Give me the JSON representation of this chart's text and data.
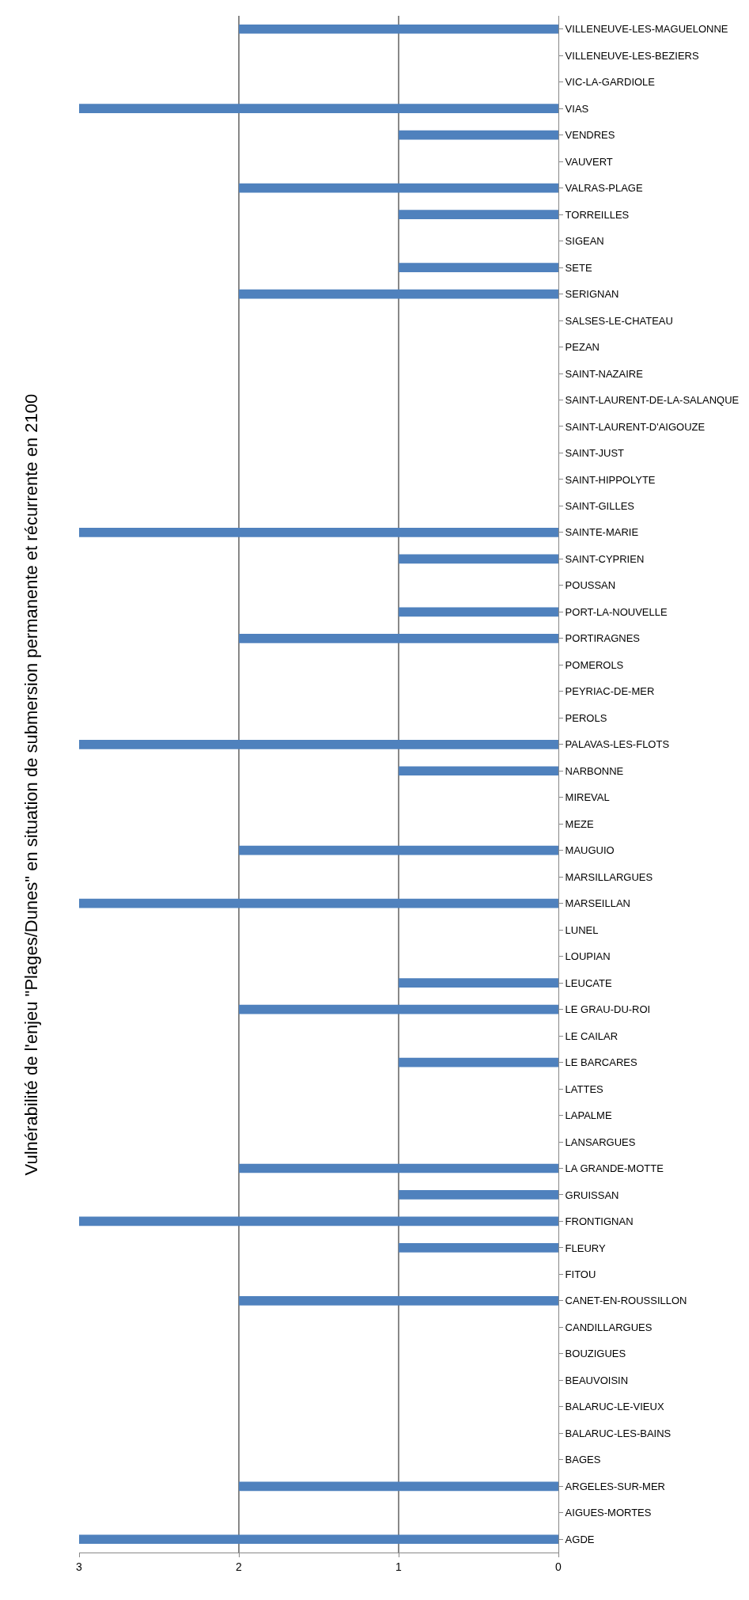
{
  "chart_data": {
    "type": "bar",
    "orientation": "horizontal",
    "title": "Vulnérabilité de l'enjeu \"Plages/Dunes\" en situation de submersion permanente et récurrente en 2100",
    "categories": [
      "VILLENEUVE-LES-MAGUELONNE",
      "VILLENEUVE-LES-BEZIERS",
      "VIC-LA-GARDIOLE",
      "VIAS",
      "VENDRES",
      "VAUVERT",
      "VALRAS-PLAGE",
      "TORREILLES",
      "SIGEAN",
      "SETE",
      "SERIGNAN",
      "SALSES-LE-CHATEAU",
      "PEZAN",
      "SAINT-NAZAIRE",
      "SAINT-LAURENT-DE-LA-SALANQUE",
      "SAINT-LAURENT-D'AIGOUZE",
      "SAINT-JUST",
      "SAINT-HIPPOLYTE",
      "SAINT-GILLES",
      "SAINTE-MARIE",
      "SAINT-CYPRIEN",
      "POUSSAN",
      "PORT-LA-NOUVELLE",
      "PORTIRAGNES",
      "POMEROLS",
      "PEYRIAC-DE-MER",
      "PEROLS",
      "PALAVAS-LES-FLOTS",
      "NARBONNE",
      "MIREVAL",
      "MEZE",
      "MAUGUIO",
      "MARSILLARGUES",
      "MARSEILLAN",
      "LUNEL",
      "LOUPIAN",
      "LEUCATE",
      "LE GRAU-DU-ROI",
      "LE CAILAR",
      "LE BARCARES",
      "LATTES",
      "LAPALME",
      "LANSARGUES",
      "LA GRANDE-MOTTE",
      "GRUISSAN",
      "FRONTIGNAN",
      "FLEURY",
      "FITOU",
      "CANET-EN-ROUSSILLON",
      "CANDILLARGUES",
      "BOUZIGUES",
      "BEAUVOISIN",
      "BALARUC-LE-VIEUX",
      "BALARUC-LES-BAINS",
      "BAGES",
      "ARGELES-SUR-MER",
      "AIGUES-MORTES",
      "AGDE"
    ],
    "values": [
      2,
      0,
      0,
      3,
      1,
      0,
      2,
      1,
      0,
      1,
      2,
      0,
      0,
      0,
      0,
      0,
      0,
      0,
      0,
      3,
      1,
      0,
      1,
      2,
      0,
      0,
      0,
      3,
      1,
      0,
      0,
      2,
      0,
      3,
      0,
      0,
      1,
      2,
      0,
      1,
      0,
      0,
      0,
      2,
      1,
      3,
      1,
      0,
      2,
      0,
      0,
      0,
      0,
      0,
      0,
      2,
      0,
      3
    ],
    "color": "#4f81bd",
    "xlim": [
      3,
      0
    ],
    "xticks": [
      3,
      2,
      1,
      0
    ],
    "grid": "x",
    "legend": false
  }
}
